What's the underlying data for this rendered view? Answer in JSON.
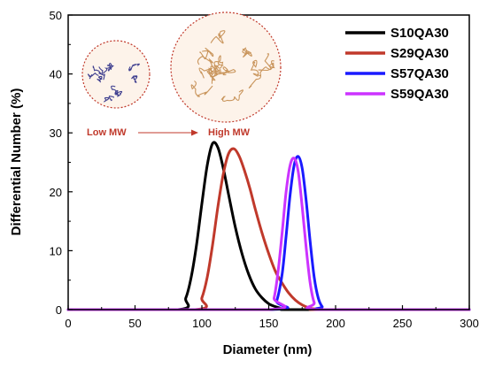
{
  "chart_data": {
    "type": "line",
    "title": "",
    "xlabel": "Diameter (nm)",
    "ylabel": "Differential Number (%)",
    "xlim": [
      0,
      300
    ],
    "ylim": [
      0,
      50
    ],
    "xticks": [
      0,
      50,
      100,
      150,
      200,
      250,
      300
    ],
    "yticks": [
      0,
      10,
      20,
      30,
      40,
      50
    ],
    "grid": false,
    "legend_position": "top-right",
    "series": [
      {
        "name": "S10QA30",
        "color": "#000000",
        "x": [
          0,
          82,
          88,
          92,
          96,
          100,
          104,
          108,
          112,
          116,
          120,
          125,
          130,
          135,
          140,
          145,
          150,
          155,
          160,
          165,
          170,
          300
        ],
        "y": [
          0,
          0,
          2,
          5.5,
          11,
          18,
          24.5,
          28.2,
          27.5,
          24,
          19.5,
          14,
          9.5,
          6,
          3.5,
          2,
          1,
          0.5,
          0.2,
          0.05,
          0,
          0
        ]
      },
      {
        "name": "S29QA30",
        "color": "#c0392b",
        "x": [
          0,
          95,
          100,
          104,
          108,
          112,
          116,
          120,
          124,
          128,
          132,
          136,
          140,
          145,
          150,
          155,
          160,
          165,
          170,
          175,
          180,
          185,
          190,
          300
        ],
        "y": [
          0,
          0,
          2,
          5.5,
          11,
          17.5,
          23,
          26.5,
          27.3,
          26,
          23.5,
          20.5,
          17,
          13,
          9.5,
          6.5,
          4.5,
          2.8,
          1.6,
          0.8,
          0.3,
          0.1,
          0,
          0
        ]
      },
      {
        "name": "S57QA30",
        "color": "#1a1aff",
        "x": [
          0,
          152,
          156,
          160,
          163,
          166,
          169,
          172,
          175,
          178,
          181,
          184,
          187,
          190,
          194,
          300
        ],
        "y": [
          0,
          0,
          1.5,
          6,
          12.5,
          19.5,
          24.5,
          26,
          24,
          18.5,
          11.5,
          5.5,
          2,
          0.5,
          0,
          0
        ]
      },
      {
        "name": "S59QA30",
        "color": "#cc33ff",
        "x": [
          0,
          150,
          154,
          157,
          160,
          163,
          166,
          169,
          172,
          175,
          178,
          181,
          184,
          188,
          300
        ],
        "y": [
          0,
          0,
          2,
          6.5,
          13,
          20,
          24.5,
          25.7,
          23.5,
          17.5,
          10.5,
          4.5,
          1.2,
          0,
          0
        ]
      }
    ],
    "annotations": {
      "low_label": "Low MW",
      "high_label": "High MW"
    }
  },
  "style": {
    "axis_color": "#000000",
    "annotation_color": "#c0392b",
    "circle_fill": "#fdf3ea",
    "low_chain_color": "#3f3f8f",
    "high_chain_color": "#c9955c"
  }
}
